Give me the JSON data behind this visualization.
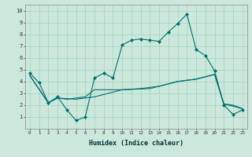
{
  "xlabel": "Humidex (Indice chaleur)",
  "xlim": [
    -0.5,
    23.5
  ],
  "ylim": [
    0,
    10.5
  ],
  "xticks": [
    0,
    1,
    2,
    3,
    4,
    5,
    6,
    7,
    8,
    9,
    10,
    11,
    12,
    13,
    14,
    15,
    16,
    17,
    18,
    19,
    20,
    21,
    22,
    23
  ],
  "yticks": [
    1,
    2,
    3,
    4,
    5,
    6,
    7,
    8,
    9,
    10
  ],
  "bg_color": "#cce8dc",
  "line_color": "#007070",
  "line1_x": [
    0,
    1,
    2,
    3,
    4,
    5,
    6,
    7,
    8,
    9,
    10,
    11,
    12,
    13,
    14,
    15,
    16,
    17,
    18,
    19,
    20,
    21,
    22,
    23
  ],
  "line1_y": [
    4.7,
    3.9,
    2.2,
    2.7,
    1.6,
    0.7,
    1.0,
    4.3,
    4.7,
    4.3,
    7.1,
    7.5,
    7.6,
    7.5,
    7.4,
    8.2,
    8.9,
    9.7,
    6.7,
    6.2,
    4.9,
    2.0,
    1.2,
    1.6
  ],
  "line2_x": [
    0,
    2,
    3,
    4,
    5,
    6,
    7,
    10,
    12,
    14,
    16,
    18,
    20,
    21,
    22,
    23
  ],
  "line2_y": [
    4.5,
    2.2,
    2.6,
    2.5,
    2.6,
    2.7,
    3.3,
    3.3,
    3.4,
    3.6,
    4.0,
    4.2,
    4.6,
    2.1,
    2.0,
    1.7
  ],
  "line3_x": [
    0,
    2,
    3,
    5,
    6,
    7,
    10,
    13,
    16,
    18,
    20,
    21,
    23
  ],
  "line3_y": [
    4.5,
    2.2,
    2.6,
    2.5,
    2.6,
    2.7,
    3.3,
    3.4,
    4.0,
    4.2,
    4.6,
    2.1,
    1.7
  ]
}
